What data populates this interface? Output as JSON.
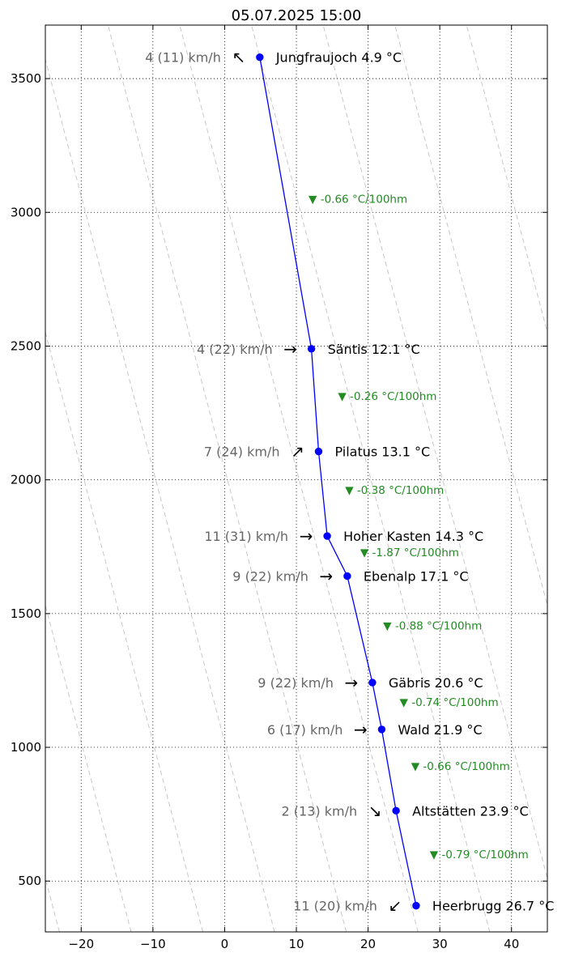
{
  "chart_data": {
    "type": "line",
    "title": "05.07.2025 15:00",
    "xlabel": "",
    "ylabel": "",
    "xlim": [
      -25,
      45
    ],
    "ylim": [
      310,
      3700
    ],
    "xticks": [
      -20,
      -10,
      0,
      10,
      20,
      30,
      40
    ],
    "xtick_labels": [
      "−20",
      "−10",
      "0",
      "10",
      "20",
      "30",
      "40"
    ],
    "yticks": [
      500,
      1000,
      1500,
      2000,
      2500,
      3000,
      3500
    ],
    "ytick_labels": [
      "500",
      "1000",
      "1500",
      "2000",
      "2500",
      "3000",
      "3500"
    ],
    "grid": true,
    "line_color": "#0000ff",
    "label_color": "#000000",
    "wind_color": "#666666",
    "lapse_color": "#228b22",
    "guide_color": "#c8c8c8",
    "guide_slope_c_per_100m": -0.98,
    "guide_offsets_c": [
      -20,
      -10,
      0,
      10,
      20,
      30,
      40,
      50,
      60,
      70
    ],
    "stations": [
      {
        "name": "Jungfraujoch",
        "temp": 4.9,
        "alt": 3580,
        "label": "Jungfraujoch 4.9 °C",
        "wind": "4 (11) km/h",
        "wind_arrow": "↖"
      },
      {
        "name": "Säntis",
        "temp": 12.1,
        "alt": 2490,
        "label": "Säntis 12.1 °C",
        "wind": "4 (22) km/h",
        "wind_arrow": "→"
      },
      {
        "name": "Pilatus",
        "temp": 13.1,
        "alt": 2106,
        "label": "Pilatus 13.1 °C",
        "wind": "7 (24) km/h",
        "wind_arrow": "↗"
      },
      {
        "name": "Hoher Kasten",
        "temp": 14.3,
        "alt": 1790,
        "label": "Hoher Kasten 14.3 °C",
        "wind": "11 (31) km/h",
        "wind_arrow": "→"
      },
      {
        "name": "Ebenalp",
        "temp": 17.1,
        "alt": 1640,
        "label": "Ebenalp 17.1 °C",
        "wind": "9 (22) km/h",
        "wind_arrow": "→"
      },
      {
        "name": "Gäbris",
        "temp": 20.6,
        "alt": 1242,
        "label": "Gäbris 20.6 °C",
        "wind": "9 (22) km/h",
        "wind_arrow": "→"
      },
      {
        "name": "Wald",
        "temp": 21.9,
        "alt": 1067,
        "label": "Wald 21.9 °C",
        "wind": "6 (17) km/h",
        "wind_arrow": "→"
      },
      {
        "name": "Altstätten",
        "temp": 23.9,
        "alt": 763,
        "label": "Altstätten 23.9 °C",
        "wind": "2 (13) km/h",
        "wind_arrow": "↘"
      },
      {
        "name": "Heerbrugg",
        "temp": 26.7,
        "alt": 408,
        "label": "Heerbrugg 26.7 °C",
        "wind": "11 (20) km/h",
        "wind_arrow": "↙"
      }
    ],
    "lapse_rates": [
      {
        "label": "▼ -0.66 °C/100hm",
        "temp": 11.7,
        "alt": 3035
      },
      {
        "label": "▼ -0.26 °C/100hm",
        "temp": 15.8,
        "alt": 2298
      },
      {
        "label": "▼ -0.38 °C/100hm",
        "temp": 16.8,
        "alt": 1948
      },
      {
        "label": "▼ -1.87 °C/100hm",
        "temp": 18.9,
        "alt": 1715
      },
      {
        "label": "▼ -0.88 °C/100hm",
        "temp": 22.1,
        "alt": 1441
      },
      {
        "label": "▼ -0.74 °C/100hm",
        "temp": 24.4,
        "alt": 1155
      },
      {
        "label": "▼ -0.66 °C/100hm",
        "temp": 26.0,
        "alt": 915
      },
      {
        "label": "▼ -0.79 °C/100hm",
        "temp": 28.6,
        "alt": 586
      }
    ]
  }
}
